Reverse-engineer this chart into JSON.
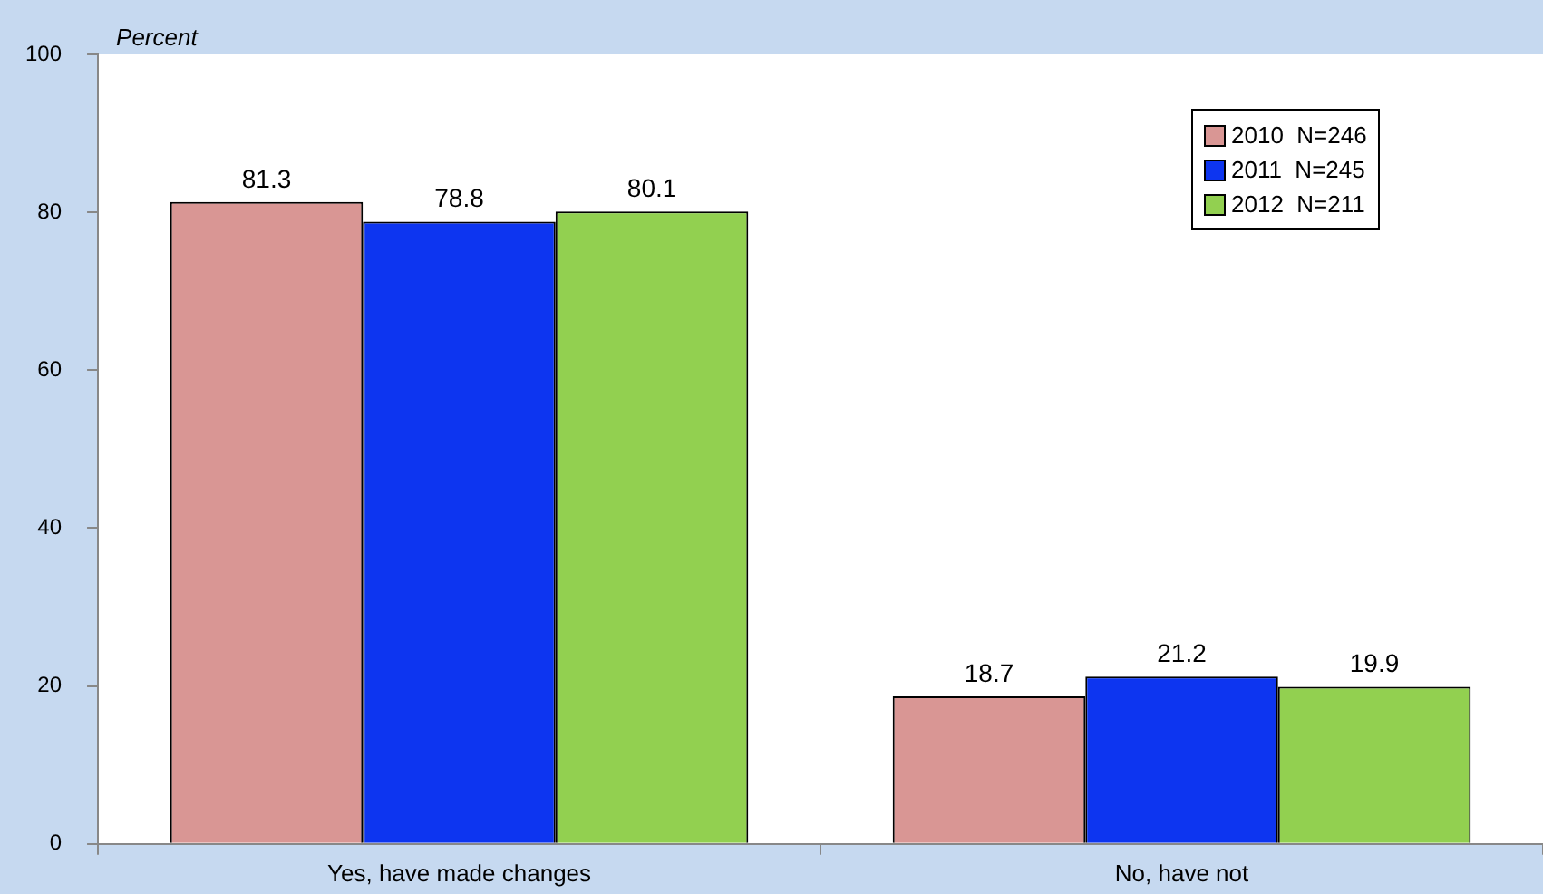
{
  "chart_data": {
    "type": "bar",
    "ylabel": "Percent",
    "categories": [
      "Yes, have made changes",
      "No, have not"
    ],
    "series": [
      {
        "name": "2010  N=246",
        "color": "#d99694",
        "values": [
          81.3,
          18.7
        ]
      },
      {
        "name": "2011  N=245",
        "color": "#0d35f0",
        "values": [
          78.8,
          21.2
        ]
      },
      {
        "name": "2012  N=211",
        "color": "#92d050",
        "values": [
          80.1,
          19.9
        ]
      }
    ],
    "ylim": [
      0,
      100
    ],
    "yticks": [
      0,
      20,
      40,
      60,
      80,
      100
    ],
    "grid": false,
    "legend": "top right",
    "data_labels": true
  }
}
